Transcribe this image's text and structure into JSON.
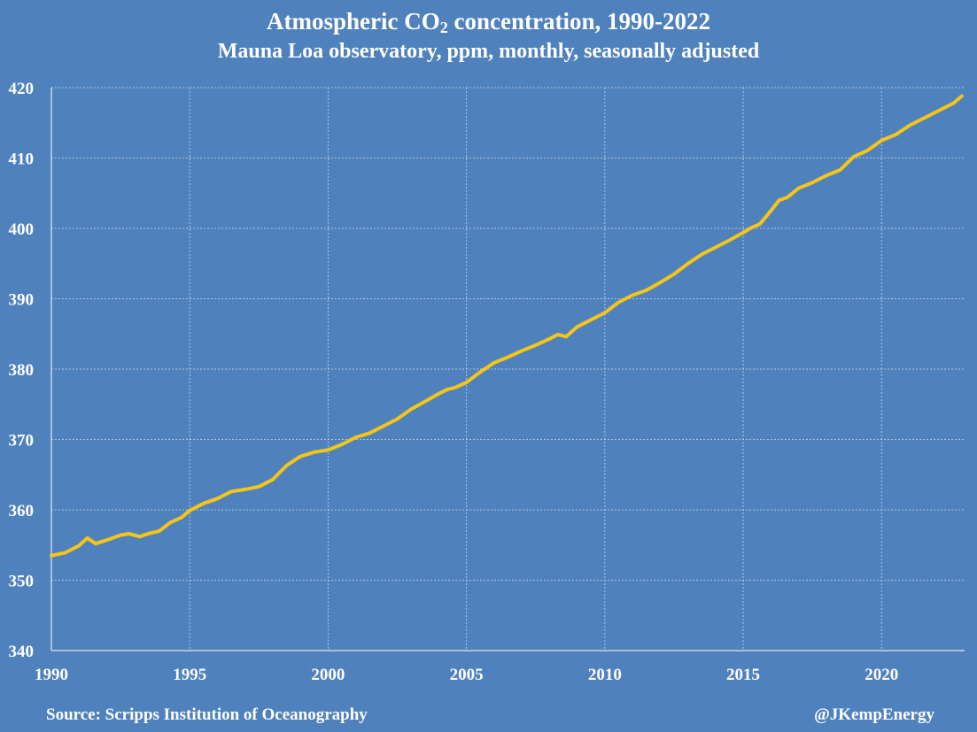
{
  "title": {
    "prefix": "Atmospheric CO",
    "sub": "2",
    "suffix": " concentration, 1990-2022"
  },
  "subtitle": "Mauna Loa observatory, ppm, monthly, seasonally adjusted",
  "source": "Source: Scripps Institution of Oceanography",
  "credit": "@JKempEnergy",
  "colors": {
    "background": "#4f81bd",
    "line": "#f5c518",
    "grid": "#c8d6ea",
    "text": "#ffffff"
  },
  "chart_data": {
    "type": "line",
    "title": "Atmospheric CO2 concentration, 1990-2022",
    "subtitle": "Mauna Loa observatory, ppm, monthly, seasonally adjusted",
    "xlabel": "",
    "ylabel": "",
    "xlim": [
      1990,
      2023
    ],
    "ylim": [
      340,
      420
    ],
    "x_ticks": [
      1990,
      1995,
      2000,
      2005,
      2010,
      2015,
      2020
    ],
    "y_ticks": [
      340,
      350,
      360,
      370,
      380,
      390,
      400,
      410,
      420
    ],
    "grid": true,
    "legend": "none",
    "series": [
      {
        "x": [
          1990.0,
          1990.5,
          1991.0,
          1991.3,
          1991.6,
          1992.0,
          1992.5,
          1992.8,
          1993.2,
          1993.5,
          1993.9,
          1994.3,
          1994.7,
          1995.0,
          1995.5,
          1996.0,
          1996.5,
          1997.0,
          1997.5,
          1998.0,
          1998.5,
          1999.0,
          1999.5,
          2000.0,
          2000.5,
          2001.0,
          2001.5,
          2002.0,
          2002.5,
          2003.0,
          2003.5,
          2004.0,
          2004.3,
          2004.6,
          2005.0,
          2005.5,
          2006.0,
          2006.5,
          2007.0,
          2007.5,
          2008.0,
          2008.3,
          2008.6,
          2009.0,
          2009.5,
          2010.0,
          2010.5,
          2011.0,
          2011.5,
          2012.0,
          2012.5,
          2013.0,
          2013.5,
          2014.0,
          2014.5,
          2015.0,
          2015.3,
          2015.6,
          2016.0,
          2016.3,
          2016.6,
          2017.0,
          2017.5,
          2018.0,
          2018.5,
          2019.0,
          2019.5,
          2020.0,
          2020.5,
          2021.0,
          2021.5,
          2022.0,
          2022.3,
          2022.6,
          2022.9
        ],
        "values": [
          353.5,
          353.9,
          354.9,
          356.0,
          355.2,
          355.7,
          356.4,
          356.6,
          356.2,
          356.6,
          357.0,
          358.2,
          358.9,
          359.9,
          360.9,
          361.6,
          362.6,
          362.9,
          363.3,
          364.3,
          366.3,
          367.6,
          368.2,
          368.5,
          369.3,
          370.3,
          370.9,
          371.9,
          372.9,
          374.3,
          375.4,
          376.5,
          377.1,
          377.4,
          378.1,
          379.6,
          380.9,
          381.7,
          382.6,
          383.4,
          384.3,
          384.9,
          384.6,
          386.0,
          387.0,
          388.0,
          389.5,
          390.5,
          391.2,
          392.3,
          393.5,
          395.0,
          396.3,
          397.3,
          398.3,
          399.4,
          400.1,
          400.6,
          402.5,
          404.0,
          404.4,
          405.7,
          406.5,
          407.5,
          408.3,
          410.2,
          411.1,
          412.5,
          413.3,
          414.6,
          415.6,
          416.6,
          417.2,
          417.8,
          418.8
        ]
      }
    ]
  }
}
